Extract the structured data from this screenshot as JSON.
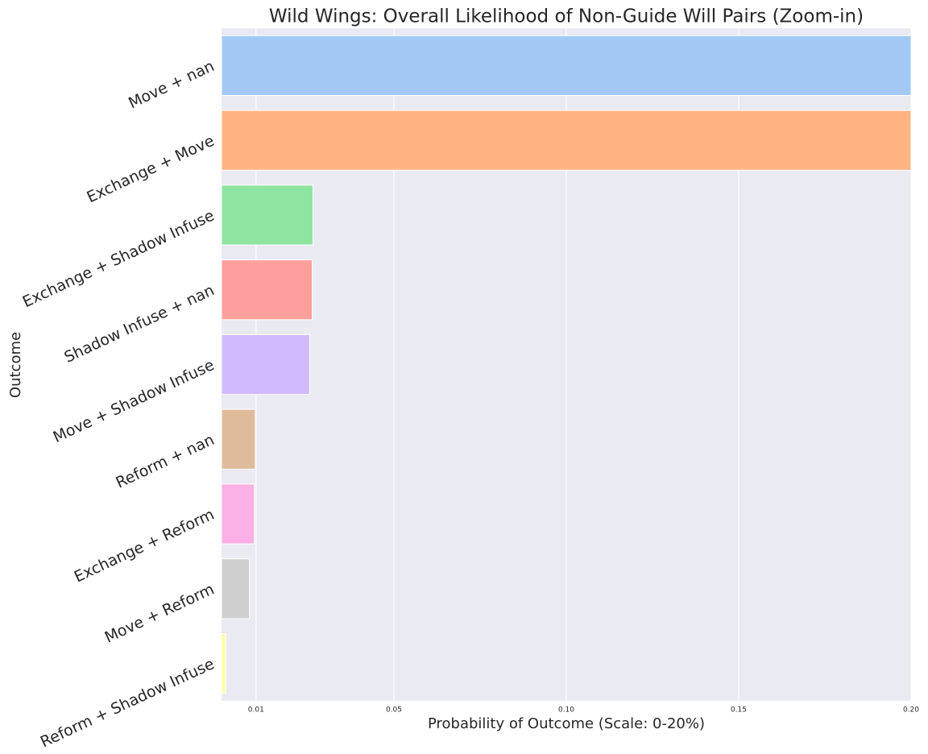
{
  "chart_data": {
    "type": "barh",
    "title": "Wild Wings: Overall Likelihood of Non-Guide Will Pairs (Zoom-in)",
    "xlabel": "Probability of Outcome (Scale: 0-20%)",
    "ylabel": "Outcome",
    "categories": [
      "Move + nan",
      "Exchange + Move",
      "Exchange + Shadow Infuse",
      "Shadow Infuse + nan",
      "Move + Shadow Infuse",
      "Reform + nan",
      "Exchange + Reform",
      "Move + Reform",
      "Reform + Shadow Infuse"
    ],
    "values": [
      0.2,
      0.2,
      0.0265,
      0.0263,
      0.0256,
      0.0098,
      0.0095,
      0.0081,
      0.0012
    ],
    "colors": [
      "#a1c9f4",
      "#ffb482",
      "#8de5a1",
      "#ff9f9b",
      "#d0bbff",
      "#debb9b",
      "#fab0e4",
      "#cfcfcf",
      "#fffea3"
    ],
    "xlim": [
      0,
      0.2
    ],
    "xticks": [
      0.01,
      0.05,
      {
        "value": 0.1,
        "label": "0.10"
      },
      0.15,
      {
        "value": 0.2,
        "label": "0.20"
      }
    ],
    "grid": true
  }
}
